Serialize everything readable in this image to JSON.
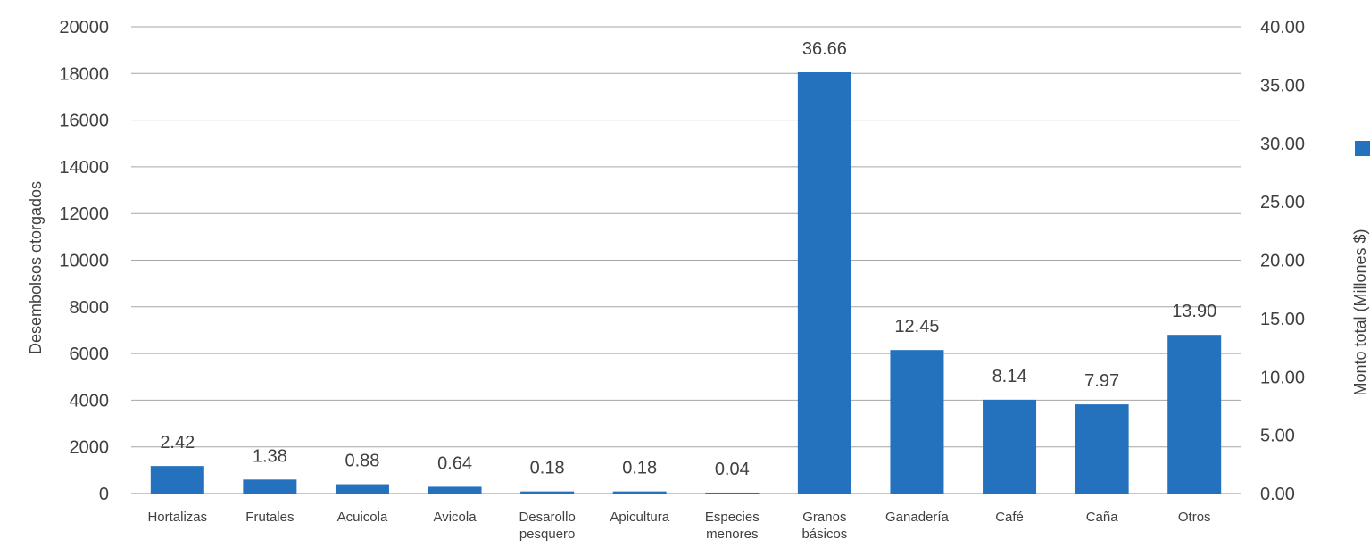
{
  "chart_data": {
    "type": "bar",
    "categories": [
      [
        "Hortalizas"
      ],
      [
        "Frutales"
      ],
      [
        "Acuicola"
      ],
      [
        "Avicola"
      ],
      [
        "Desarollo",
        "pesquero"
      ],
      [
        "Apicultura"
      ],
      [
        "Especies",
        "menores"
      ],
      [
        "Granos",
        "básicos"
      ],
      [
        "Ganadería"
      ],
      [
        "Café"
      ],
      [
        "Caña"
      ],
      [
        "Otros"
      ]
    ],
    "series": [
      {
        "axis": "left",
        "values": [
          1180,
          600,
          400,
          290,
          90,
          90,
          40,
          18050,
          6150,
          4020,
          3820,
          6800
        ],
        "color": "#2472bd"
      },
      {
        "axis": "right",
        "values": [
          2.42,
          1.38,
          0.88,
          0.64,
          0.18,
          0.18,
          0.04,
          36.66,
          12.45,
          8.14,
          7.97,
          13.9
        ],
        "data_labels": [
          "2.42",
          "1.38",
          "0.88",
          "0.64",
          "0.18",
          "0.18",
          "0.04",
          "36.66",
          "12.45",
          "8.14",
          "7.97",
          "13.90"
        ]
      }
    ],
    "ylabel_left": "Desembolsos otorgados",
    "ylabel_right": "Monto total (Millones $)",
    "ylim_left": [
      0,
      20000
    ],
    "ylim_right": [
      0,
      40
    ],
    "yticks_left": [
      "0",
      "2000",
      "4000",
      "6000",
      "8000",
      "10000",
      "12000",
      "14000",
      "16000",
      "18000",
      "20000"
    ],
    "yticks_right": [
      "0.00",
      "5.00",
      "10.00",
      "15.00",
      "20.00",
      "25.00",
      "30.00",
      "35.00",
      "40.00"
    ],
    "grid": true,
    "legend": "right",
    "legend_marker_color": "#2472bd"
  }
}
